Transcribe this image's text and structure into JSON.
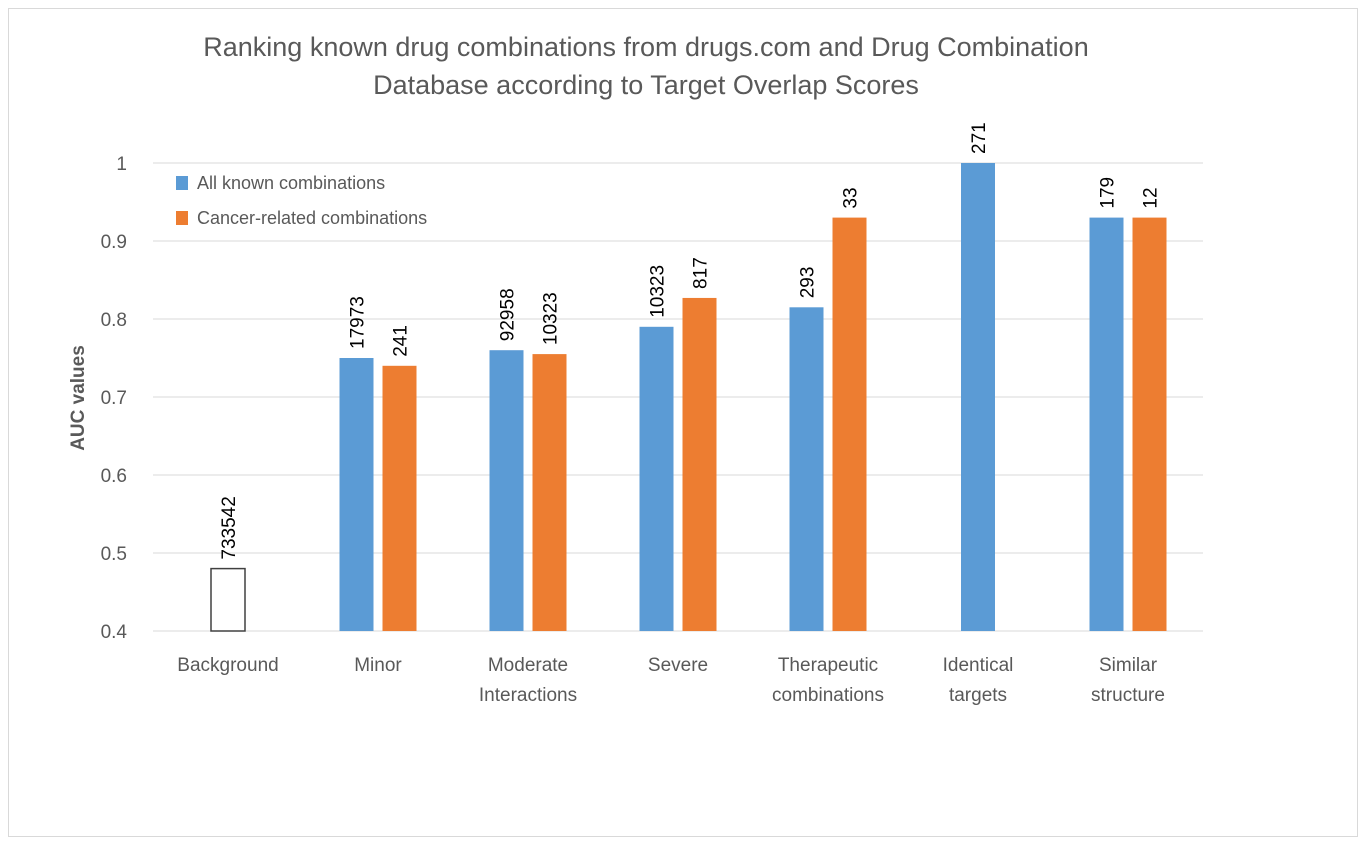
{
  "chart_data": {
    "type": "bar",
    "title_lines": [
      "Ranking known drug combinations from drugs.com and Drug Combination",
      "Database according to Target Overlap Scores"
    ],
    "xlabel": "",
    "ylabel": "AUC values",
    "ylim": [
      0.4,
      1.0
    ],
    "yticks": [
      "0.4",
      "0.5",
      "0.6",
      "0.7",
      "0.8",
      "0.9",
      "1"
    ],
    "grid": true,
    "legend_position": "top-left",
    "categories": [
      [
        "Background"
      ],
      [
        "Minor"
      ],
      [
        "Moderate",
        "Interactions"
      ],
      [
        "Severe"
      ],
      [
        "Therapeutic",
        "combinations"
      ],
      [
        "Identical",
        "targets"
      ],
      [
        "Similar",
        "structure"
      ]
    ],
    "background": {
      "value": 0.48,
      "label": "733542",
      "color": "#ffffff",
      "stroke": "#404040"
    },
    "series": [
      {
        "name": "All known combinations",
        "color": "#5b9bd5",
        "values": [
          null,
          0.75,
          0.76,
          0.79,
          0.815,
          1.0,
          0.93
        ],
        "labels": [
          null,
          "17973",
          "92958",
          "10323",
          "293",
          "271",
          "179"
        ]
      },
      {
        "name": "Cancer-related combinations",
        "color": "#ed7d31",
        "values": [
          null,
          0.74,
          0.755,
          0.827,
          0.93,
          null,
          0.93
        ],
        "labels": [
          null,
          "241",
          "10323",
          "817",
          "33",
          null,
          "12"
        ]
      }
    ]
  }
}
